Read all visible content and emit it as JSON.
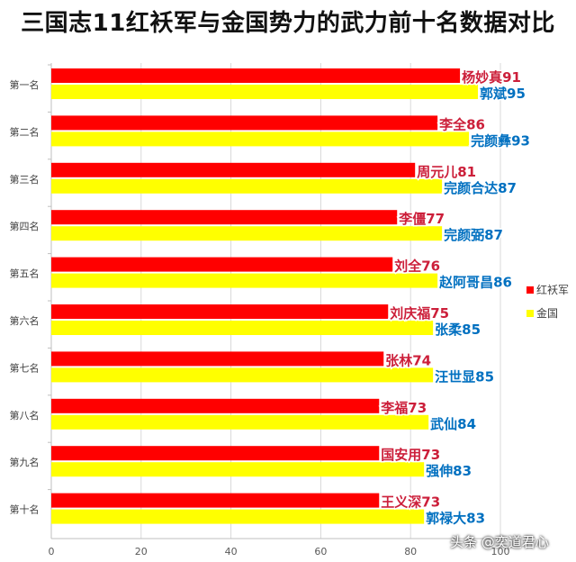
{
  "chart_data": {
    "type": "bar",
    "orientation": "horizontal",
    "title": "三国志11红袄军与金国势力的武力前十名数据对比",
    "categories": [
      "第一名",
      "第二名",
      "第三名",
      "第四名",
      "第五名",
      "第六名",
      "第七名",
      "第八名",
      "第九名",
      "第十名"
    ],
    "series": [
      {
        "name": "红袄军",
        "color": "#ff0000",
        "values": [
          91,
          86,
          81,
          77,
          76,
          75,
          74,
          73,
          73,
          73
        ],
        "labels": [
          "杨妙真91",
          "李全86",
          "周元儿81",
          "李僵77",
          "刘全76",
          "刘庆福75",
          "张林74",
          "李福73",
          "国安用73",
          "王义深73"
        ],
        "label_color": "#cc1f3a"
      },
      {
        "name": "金国",
        "color": "#ffff00",
        "values": [
          95,
          93,
          87,
          87,
          86,
          85,
          85,
          84,
          83,
          83
        ],
        "labels": [
          "郭斌95",
          "完颜彝93",
          "完颜合达87",
          "完颜弼87",
          "赵阿哥昌86",
          "张柔85",
          "汪世显85",
          "武仙84",
          "强伸83",
          "郭禄大83"
        ],
        "label_color": "#0070c0"
      }
    ],
    "xlim": [
      0,
      100
    ],
    "x_ticks": [
      "0",
      "20",
      "40",
      "60",
      "80",
      "100"
    ],
    "grid": true,
    "legend_position": "right"
  },
  "watermark": "头条 @奕道君心"
}
